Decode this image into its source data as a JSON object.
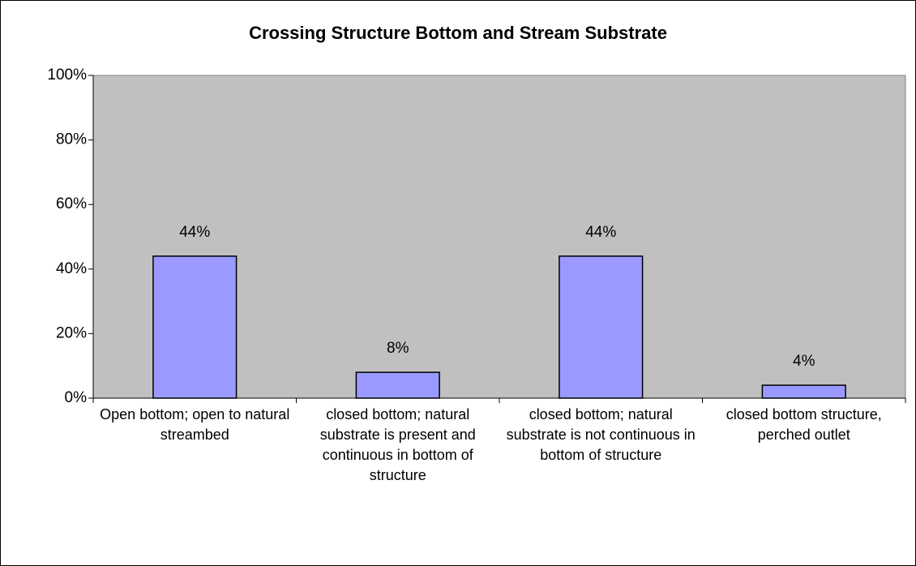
{
  "chart_data": {
    "type": "bar",
    "title": "Crossing Structure Bottom and Stream Substrate",
    "categories": [
      "Open bottom; open to natural streambed",
      "closed bottom; natural substrate is present and continuous in bottom of structure",
      "closed bottom; natural substrate is not continuous in bottom of structure",
      "closed bottom structure, perched outlet"
    ],
    "values": [
      44,
      8,
      44,
      4
    ],
    "value_labels": [
      "44%",
      "8%",
      "44%",
      "4%"
    ],
    "color": "#9999ff",
    "plot_background": "#c0c0c0",
    "ylim": [
      0,
      100
    ],
    "yticks": [
      {
        "value": 0,
        "label": "0%"
      },
      {
        "value": 20,
        "label": "20%"
      },
      {
        "value": 40,
        "label": "40%"
      },
      {
        "value": 60,
        "label": "60%"
      },
      {
        "value": 80,
        "label": "80%"
      },
      {
        "value": 100,
        "label": "100%"
      }
    ],
    "grid": false
  }
}
